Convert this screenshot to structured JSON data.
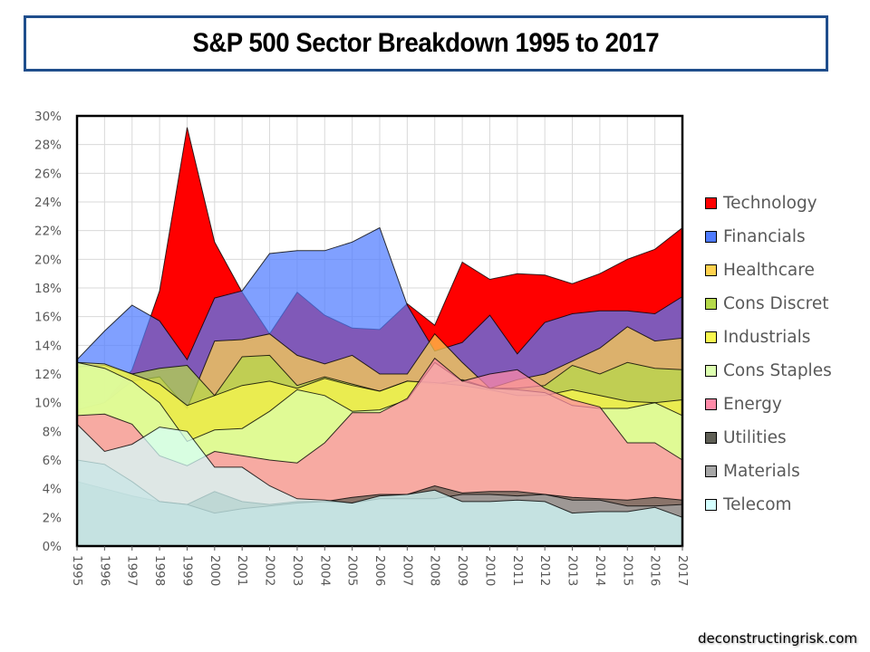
{
  "title": "S&P 500 Sector Breakdown 1995 to 2017",
  "credit": "deconstructingrisk.com",
  "chart_data": {
    "type": "area",
    "stacked": false,
    "title": "S&P 500 Sector Breakdown 1995 to 2017",
    "xlabel": "",
    "ylabel": "",
    "ylim": [
      0,
      30
    ],
    "y_unit": "%",
    "yticks": [
      "0%",
      "2%",
      "4%",
      "6%",
      "8%",
      "10%",
      "12%",
      "14%",
      "16%",
      "18%",
      "20%",
      "22%",
      "24%",
      "26%",
      "28%",
      "30%"
    ],
    "grid": true,
    "legend_position": "right",
    "categories": [
      "1995",
      "1996",
      "1997",
      "1998",
      "1999",
      "2000",
      "2001",
      "2002",
      "2003",
      "2004",
      "2005",
      "2006",
      "2007",
      "2008",
      "2009",
      "2010",
      "2011",
      "2012",
      "2013",
      "2014",
      "2015",
      "2016",
      "2017"
    ],
    "series": [
      {
        "name": "Technology",
        "color": "#FF0000",
        "values": [
          9.5,
          10.0,
          12.3,
          17.8,
          29.2,
          21.2,
          17.7,
          14.8,
          17.7,
          16.1,
          15.2,
          15.1,
          16.9,
          15.4,
          19.8,
          18.6,
          19.0,
          18.9,
          18.3,
          19.0,
          20.0,
          20.7,
          22.2
        ]
      },
      {
        "name": "Financials",
        "color": "#4F7BFF",
        "values": [
          13.0,
          15.0,
          16.8,
          15.7,
          13.0,
          17.3,
          17.8,
          20.4,
          20.6,
          20.6,
          21.2,
          22.2,
          16.8,
          13.6,
          14.2,
          16.1,
          13.4,
          15.6,
          16.2,
          16.4,
          16.4,
          16.2,
          17.4
        ]
      },
      {
        "name": "Healthcare",
        "color": "#FFD24F",
        "values": [
          9.5,
          10.0,
          11.5,
          11.8,
          9.6,
          14.3,
          14.4,
          14.8,
          13.3,
          12.7,
          13.3,
          12.0,
          12.0,
          14.8,
          12.8,
          11.0,
          11.6,
          12.0,
          12.9,
          13.8,
          15.3,
          14.3,
          14.5
        ]
      },
      {
        "name": "Cons Discret",
        "color": "#B5D94A",
        "values": [
          12.5,
          12.6,
          12.0,
          12.4,
          12.6,
          10.5,
          13.2,
          13.3,
          11.2,
          11.8,
          11.3,
          10.8,
          11.5,
          11.3,
          11.6,
          11.0,
          11.0,
          11.2,
          12.6,
          12.0,
          12.8,
          12.4,
          12.3
        ]
      },
      {
        "name": "Industrials",
        "color": "#F9F84F",
        "values": [
          12.8,
          12.7,
          12.0,
          11.3,
          9.8,
          10.5,
          11.2,
          11.5,
          11.0,
          11.7,
          11.2,
          10.8,
          11.5,
          11.4,
          11.2,
          10.9,
          10.5,
          10.5,
          10.9,
          10.5,
          10.1,
          10.0,
          10.2
        ]
      },
      {
        "name": "Cons Staples",
        "color": "#DDFFB0",
        "values": [
          12.8,
          12.4,
          11.5,
          10.0,
          7.3,
          8.1,
          8.2,
          9.4,
          10.9,
          10.5,
          9.4,
          9.5,
          10.2,
          12.8,
          11.5,
          11.0,
          10.9,
          10.7,
          9.8,
          9.6,
          9.6,
          10.0,
          9.1
        ]
      },
      {
        "name": "Energy",
        "color": "#FF8AA8",
        "values": [
          9.1,
          9.2,
          8.5,
          6.3,
          5.6,
          6.6,
          6.3,
          6.0,
          5.8,
          7.2,
          9.3,
          9.3,
          10.3,
          13.1,
          11.5,
          12.0,
          12.3,
          11.0,
          10.2,
          9.7,
          7.2,
          7.2,
          6.0
        ]
      },
      {
        "name": "Utilities",
        "color": "#5F5F55",
        "values": [
          4.5,
          4.0,
          3.5,
          3.1,
          2.9,
          3.8,
          3.1,
          2.9,
          3.1,
          3.1,
          3.4,
          3.6,
          3.6,
          4.2,
          3.7,
          3.8,
          3.8,
          3.6,
          3.4,
          3.3,
          3.2,
          3.4,
          3.2
        ]
      },
      {
        "name": "Materials",
        "color": "#A6A6A6",
        "values": [
          6.0,
          5.7,
          4.5,
          3.1,
          2.9,
          2.3,
          2.6,
          2.8,
          3.0,
          3.1,
          3.0,
          3.3,
          3.3,
          3.3,
          3.6,
          3.6,
          3.5,
          3.6,
          3.2,
          3.2,
          2.8,
          2.8,
          2.9
        ]
      },
      {
        "name": "Telecom",
        "color": "#D4FFFF",
        "values": [
          8.5,
          6.6,
          7.1,
          8.3,
          8.0,
          5.5,
          5.5,
          4.2,
          3.3,
          3.2,
          3.0,
          3.5,
          3.6,
          3.9,
          3.1,
          3.1,
          3.2,
          3.1,
          2.3,
          2.4,
          2.4,
          2.7,
          2.0
        ]
      }
    ]
  }
}
